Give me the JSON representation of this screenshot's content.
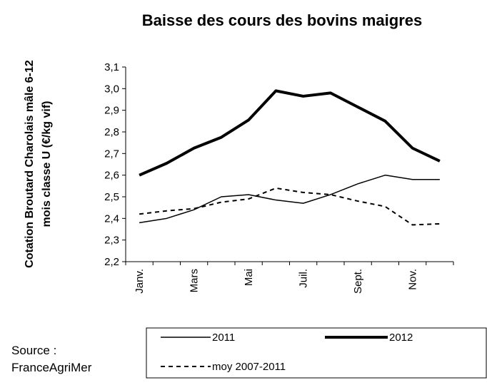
{
  "chart_data": {
    "type": "line",
    "title": "Baisse des cours des bovins maigres",
    "y_label": [
      "Cotation Broutard Charolais mâle 6-12",
      "mois classe U  (€/kg vif)"
    ],
    "source": [
      "Source :",
      "FranceAgriMer"
    ],
    "categories": [
      "Janv.",
      null,
      "Mars",
      null,
      "Mai",
      null,
      "Juil.",
      null,
      "Sept.",
      null,
      "Nov.",
      null
    ],
    "series": [
      {
        "name": "2011",
        "color": "#000000",
        "width": 1.5,
        "dash": "none",
        "values": [
          2.38,
          2.4,
          2.44,
          2.5,
          2.51,
          2.485,
          2.47,
          2.51,
          2.56,
          2.6,
          2.58,
          2.58
        ]
      },
      {
        "name": "2012",
        "color": "#000000",
        "width": 4,
        "dash": "none",
        "values": [
          2.6,
          2.655,
          2.725,
          2.775,
          2.855,
          2.99,
          2.965,
          2.98,
          2.915,
          2.85,
          2.725,
          2.665
        ]
      },
      {
        "name": "moy 2007-2011",
        "color": "#000000",
        "width": 2,
        "dash": "6,5",
        "values": [
          2.42,
          2.435,
          2.445,
          2.475,
          2.49,
          2.54,
          2.52,
          2.51,
          2.48,
          2.455,
          2.37,
          2.375
        ]
      }
    ],
    "ylim": [
      2.2,
      3.1
    ],
    "yticks": [
      {
        "value": 2.2,
        "label": "2,2"
      },
      {
        "value": 2.3,
        "label": "2,3"
      },
      {
        "value": 2.4,
        "label": "2,4"
      },
      {
        "value": 2.5,
        "label": "2,5"
      },
      {
        "value": 2.6,
        "label": "2,6"
      },
      {
        "value": 2.7,
        "label": "2,7"
      },
      {
        "value": 2.8,
        "label": "2,8"
      },
      {
        "value": 2.9,
        "label": "2,9"
      },
      {
        "value": 3.0,
        "label": "3,0"
      },
      {
        "value": 3.1,
        "label": "3,1"
      }
    ],
    "grid": false
  }
}
